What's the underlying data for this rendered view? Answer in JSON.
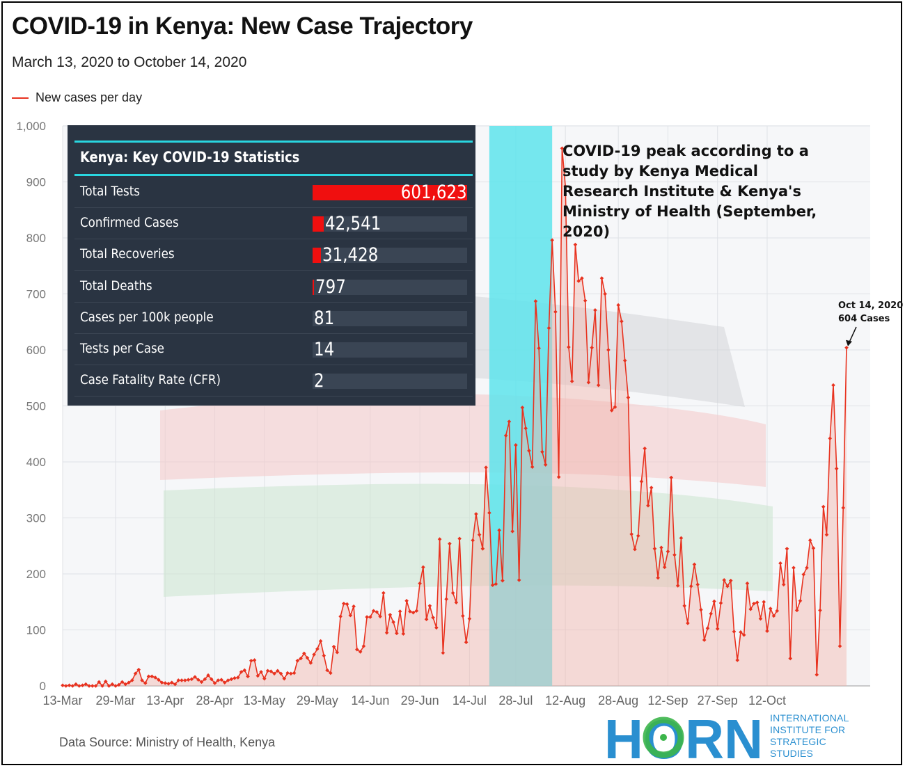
{
  "title": "COVID-19 in Kenya: New Case Trajectory",
  "subtitle": "March 13, 2020 to October 14, 2020",
  "legend": {
    "label": "New cases per day",
    "color": "#e8321f"
  },
  "stats_panel": {
    "heading": "Kenya: Key COVID-19 Statistics",
    "rows": [
      {
        "label": "Total Tests",
        "value": "601,623",
        "share": 1.0
      },
      {
        "label": "Confirmed Cases",
        "value": "42,541",
        "share": 0.071
      },
      {
        "label": "Total Recoveries",
        "value": "31,428",
        "share": 0.052
      },
      {
        "label": "Total Deaths",
        "value": "797",
        "share": 0.004
      },
      {
        "label": "Cases per 100k people",
        "value": "81",
        "share": 0
      },
      {
        "label": "Tests per Case",
        "value": "14",
        "share": 0
      },
      {
        "label": "Case Fatality Rate (CFR)",
        "value": "2",
        "share": 0
      }
    ]
  },
  "peak_annotation": "COVID-19 peak according to a study by Kenya Medical Research Institute & Kenya's Ministry of Health (September, 2020)",
  "last_point_annotation": {
    "line1": "Oct 14, 2020",
    "line2": "604 Cases"
  },
  "source": "Data Source: Ministry of Health, Kenya",
  "logo": {
    "mark": "HORN",
    "lines": [
      "INTERNATIONAL",
      "INSTITUTE FOR",
      "STRATEGIC",
      "STUDIES"
    ],
    "color": "#2a8fd0",
    "ring_color": "#3cb54a"
  },
  "chart_data": {
    "type": "area",
    "start_date": "2020-03-13",
    "y_ticks": [
      "0",
      "100",
      "200",
      "300",
      "400",
      "500",
      "600",
      "700",
      "800",
      "900",
      "1,000"
    ],
    "ylim": [
      0,
      1000
    ],
    "x_tick_labels": [
      "13-Mar",
      "29-Mar",
      "13-Apr",
      "28-Apr",
      "13-May",
      "29-May",
      "14-Jun",
      "29-Jun",
      "14-Jul",
      "28-Jul",
      "12-Aug",
      "28-Aug",
      "12-Sep",
      "27-Sep",
      "12-Oct"
    ],
    "x_tick_days": [
      0,
      16,
      31,
      46,
      61,
      77,
      93,
      108,
      123,
      137,
      152,
      168,
      183,
      198,
      213
    ],
    "highlight_band": {
      "from": "2020-07-20",
      "to": "2020-08-08",
      "color": "#5ee4ec"
    },
    "series": [
      {
        "name": "New cases per day",
        "color": "#e8321f",
        "values": [
          1,
          0,
          1,
          0,
          3,
          0,
          1,
          3,
          0,
          0,
          0,
          7,
          0,
          8,
          0,
          3,
          0,
          2,
          7,
          3,
          6,
          10,
          22,
          29,
          10,
          5,
          17,
          17,
          15,
          11,
          6,
          5,
          4,
          6,
          3,
          10,
          10,
          10,
          11,
          12,
          16,
          11,
          7,
          12,
          19,
          12,
          5,
          10,
          11,
          6,
          10,
          12,
          14,
          15,
          25,
          28,
          17,
          45,
          46,
          18,
          25,
          13,
          27,
          26,
          22,
          27,
          22,
          13,
          23,
          22,
          23,
          45,
          49,
          58,
          50,
          41,
          56,
          66,
          80,
          54,
          28,
          23,
          70,
          60,
          124,
          147,
          146,
          126,
          142,
          65,
          61,
          71,
          123,
          123,
          134,
          132,
          124,
          166,
          95,
          127,
          114,
          94,
          133,
          93,
          152,
          133,
          131,
          134,
          183,
          212,
          119,
          143,
          122,
          104,
          262,
          59,
          155,
          254,
          166,
          149,
          263,
          125,
          78,
          120,
          260,
          307,
          270,
          245,
          390,
          309,
          180,
          182,
          278,
          188,
          447,
          472,
          276,
          430,
          189,
          497,
          460,
          420,
          391,
          687,
          603,
          418,
          395,
          639,
          796,
          668,
          373,
          960,
          892,
          605,
          544,
          788,
          723,
          728,
          688,
          542,
          604,
          671,
          537,
          728,
          700,
          600,
          492,
          498,
          680,
          651,
          581,
          515,
          271,
          244,
          268,
          365,
          424,
          322,
          354,
          245,
          193,
          247,
          212,
          240,
          372,
          234,
          179,
          264,
          143,
          112,
          178,
          217,
          181,
          136,
          82,
          103,
          129,
          151,
          102,
          148,
          189,
          178,
          188,
          97,
          46,
          96,
          91,
          183,
          137,
          147,
          149,
          120,
          150,
          98,
          138,
          125,
          134,
          219,
          181,
          245,
          49,
          211,
          135,
          152,
          199,
          211,
          260,
          246,
          20,
          135,
          320,
          270,
          442,
          537,
          388,
          71,
          318,
          604
        ]
      }
    ]
  }
}
